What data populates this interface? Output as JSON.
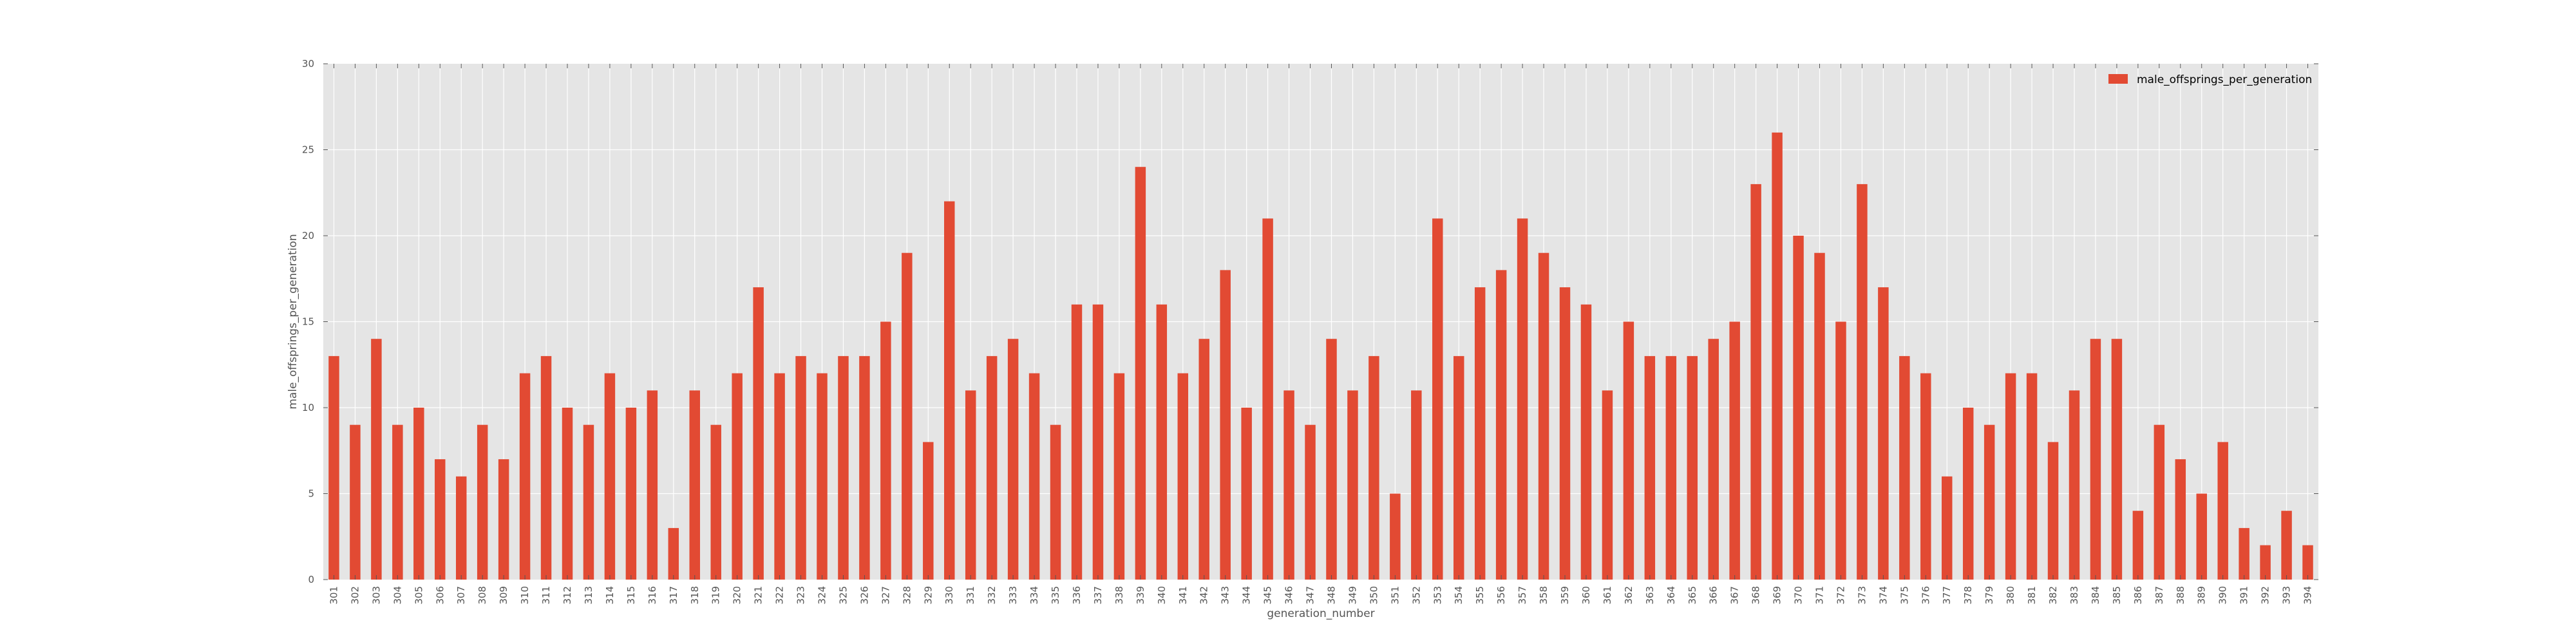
{
  "chart_data": {
    "type": "bar",
    "xlabel": "generation_number",
    "ylabel": "male_offsprings_per_generation",
    "ylim": [
      0,
      30
    ],
    "yticks": [
      0,
      5,
      10,
      15,
      20,
      25,
      30
    ],
    "grid": true,
    "legend": {
      "placement": "top-right"
    },
    "categories": [
      "301",
      "302",
      "303",
      "304",
      "305",
      "306",
      "307",
      "308",
      "309",
      "310",
      "311",
      "312",
      "313",
      "314",
      "315",
      "316",
      "317",
      "318",
      "319",
      "320",
      "321",
      "322",
      "323",
      "324",
      "325",
      "326",
      "327",
      "328",
      "329",
      "330",
      "331",
      "332",
      "333",
      "334",
      "335",
      "336",
      "337",
      "338",
      "339",
      "340",
      "341",
      "342",
      "343",
      "344",
      "345",
      "346",
      "347",
      "348",
      "349",
      "350",
      "351",
      "352",
      "353",
      "354",
      "355",
      "356",
      "357",
      "358",
      "359",
      "360",
      "361",
      "362",
      "363",
      "364",
      "365",
      "366",
      "367",
      "368",
      "369",
      "370",
      "371",
      "372",
      "373",
      "374",
      "375",
      "376",
      "377",
      "378",
      "379",
      "380",
      "381",
      "382",
      "383",
      "384",
      "385",
      "386",
      "387",
      "388",
      "389",
      "390",
      "391",
      "392",
      "393",
      "394"
    ],
    "series": [
      {
        "name": "male_offsprings_per_generation",
        "color": "#E24A33",
        "values": [
          13,
          9,
          14,
          9,
          10,
          7,
          6,
          9,
          7,
          12,
          13,
          10,
          9,
          12,
          10,
          11,
          3,
          11,
          9,
          12,
          17,
          12,
          13,
          12,
          13,
          13,
          15,
          19,
          8,
          22,
          11,
          13,
          14,
          12,
          9,
          16,
          16,
          12,
          24,
          16,
          12,
          14,
          18,
          10,
          21,
          11,
          9,
          14,
          11,
          13,
          5,
          11,
          21,
          13,
          17,
          18,
          21,
          19,
          17,
          16,
          11,
          15,
          13,
          13,
          13,
          14,
          15,
          23,
          26,
          20,
          19,
          15,
          23,
          17,
          13,
          12,
          6,
          10,
          9,
          12,
          12,
          8,
          11,
          14,
          14,
          4,
          9,
          7,
          5,
          8,
          3,
          2,
          4,
          2
        ]
      }
    ]
  }
}
